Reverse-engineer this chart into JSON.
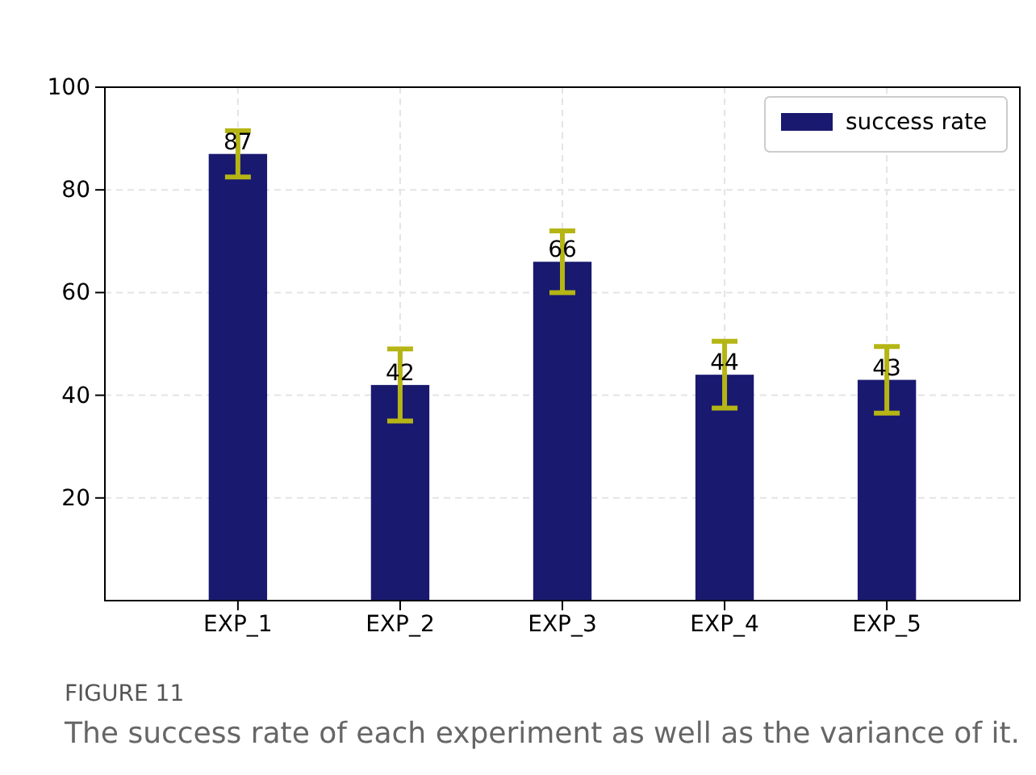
{
  "chart_data": {
    "type": "bar",
    "categories": [
      "EXP_1",
      "EXP_2",
      "EXP_3",
      "EXP_4",
      "EXP_5"
    ],
    "series": [
      {
        "name": "success rate",
        "color": "#191970",
        "values": [
          87,
          42,
          66,
          44,
          43
        ],
        "errors": [
          4.5,
          7,
          6,
          6.5,
          6.5
        ]
      }
    ],
    "ylim": [
      0,
      100
    ],
    "yticks": [
      20,
      40,
      60,
      80,
      100
    ],
    "grid": true,
    "legend": "top right",
    "data_labels": true,
    "annotations": [
      "FIGURE 11",
      "The success rate of each experiment as well as the variance of it."
    ]
  }
}
